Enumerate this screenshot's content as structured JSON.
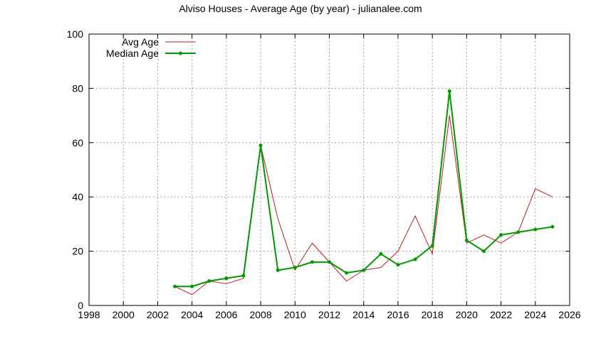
{
  "chart_data": {
    "type": "line",
    "title": "Alviso Houses - Average Age (by year) - julianalee.com",
    "xlabel": "",
    "ylabel": "",
    "xlim": [
      1998,
      2026
    ],
    "ylim": [
      0,
      100
    ],
    "xticks": [
      1998,
      2000,
      2002,
      2004,
      2006,
      2008,
      2010,
      2012,
      2014,
      2016,
      2018,
      2020,
      2022,
      2024,
      2026
    ],
    "yticks": [
      0,
      20,
      40,
      60,
      80,
      100
    ],
    "grid": true,
    "legend_position": "top-left",
    "x": [
      2003,
      2004,
      2005,
      2006,
      2007,
      2008,
      2009,
      2010,
      2011,
      2012,
      2013,
      2014,
      2015,
      2016,
      2017,
      2018,
      2019,
      2020,
      2021,
      2022,
      2023,
      2024,
      2025
    ],
    "series": [
      {
        "name": "Avg Age",
        "color": "#b22222",
        "markers": false,
        "values": [
          7,
          4,
          9,
          8,
          10,
          59,
          32,
          13,
          23,
          16,
          9,
          13,
          14,
          20,
          33,
          19,
          70,
          23,
          26,
          23,
          27,
          43,
          40
        ]
      },
      {
        "name": "Median Age",
        "color": "#009900",
        "markers": true,
        "values": [
          7,
          7,
          9,
          10,
          11,
          59,
          13,
          14,
          16,
          16,
          12,
          13,
          19,
          15,
          17,
          22,
          79,
          24,
          20,
          26,
          27,
          28,
          29
        ]
      }
    ]
  }
}
